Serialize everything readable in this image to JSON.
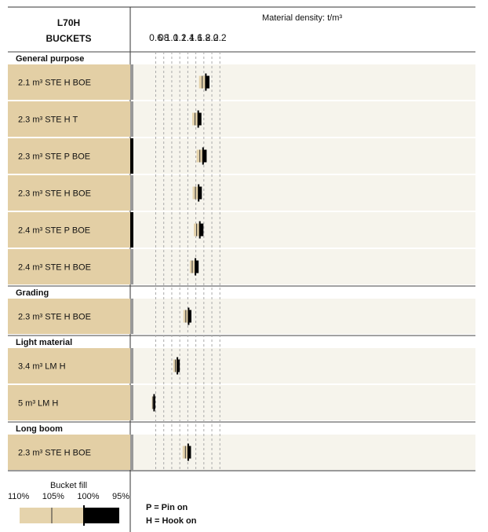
{
  "chart_data": {
    "type": "range-bar",
    "title": "L70H BUCKETS",
    "title_line1": "L70H",
    "title_line2": "BUCKETS",
    "xlabel": "Material density: t/m³",
    "xlim": [
      0.45,
      2.2
    ],
    "ticks": [
      "0.6",
      "08",
      "1.0",
      "1.2",
      "1.4",
      "1.6",
      "1.8",
      "2.0",
      "2.2"
    ],
    "tick_values": [
      0.6,
      0.8,
      1.0,
      1.2,
      1.4,
      1.6,
      1.8,
      2.0,
      2.2
    ],
    "fill_levels": [
      "110%",
      "105%",
      "100%",
      "95%"
    ],
    "groups": [
      {
        "name": "General purpose",
        "buckets": [
          {
            "label": "2.1 m³ STE H BOE",
            "mount": "H",
            "d110": 1.68,
            "d105": 1.76,
            "d100": 1.85,
            "d95": 1.94
          },
          {
            "label": "2.3 m³ STE H T",
            "mount": "H",
            "d110": 1.51,
            "d105": 1.58,
            "d100": 1.66,
            "d95": 1.74
          },
          {
            "label": "2.3 m³ STE P BOE",
            "mount": "P",
            "d110": 1.62,
            "d105": 1.7,
            "d100": 1.78,
            "d95": 1.87
          },
          {
            "label": "2.3 m³ STE H BOE",
            "mount": "H",
            "d110": 1.52,
            "d105": 1.59,
            "d100": 1.67,
            "d95": 1.75
          },
          {
            "label": "2.4 m³ STE P BOE",
            "mount": "P",
            "d110": 1.55,
            "d105": 1.62,
            "d100": 1.7,
            "d95": 1.79
          },
          {
            "label": "2.4 m³ STE H BOE",
            "mount": "H",
            "d110": 1.45,
            "d105": 1.51,
            "d100": 1.59,
            "d95": 1.67
          }
        ]
      },
      {
        "name": "Grading",
        "buckets": [
          {
            "label": "2.3 m³ STE H BOE",
            "mount": "H",
            "d110": 1.29,
            "d105": 1.35,
            "d100": 1.42,
            "d95": 1.49
          }
        ]
      },
      {
        "name": "Light material",
        "buckets": [
          {
            "label": "3.4 m³ LM H",
            "mount": "H",
            "d110": 1.04,
            "d105": 1.09,
            "d100": 1.14,
            "d95": 1.2
          },
          {
            "label": "5 m³ LM H",
            "mount": "H",
            "d110": 0.5,
            "d105": 0.53,
            "d100": 0.56,
            "d95": 0.59
          }
        ]
      },
      {
        "name": "Long boom",
        "buckets": [
          {
            "label": "2.3 m³ STE H BOE",
            "mount": "H",
            "d110": 1.27,
            "d105": 1.34,
            "d100": 1.41,
            "d95": 1.48
          }
        ]
      }
    ],
    "legend": {
      "title": "Bucket fill",
      "pin": "P = Pin on",
      "hook": "H = Hook on"
    },
    "colors": {
      "label_bg": "#e3cfa5",
      "row_bg": "#f6f4ec",
      "fill_light": "#e5d3ac",
      "fill_dark": "#000000",
      "mount_pin": "#000000",
      "mount_hook": "#999999",
      "grid": "#aaaaaa"
    }
  }
}
